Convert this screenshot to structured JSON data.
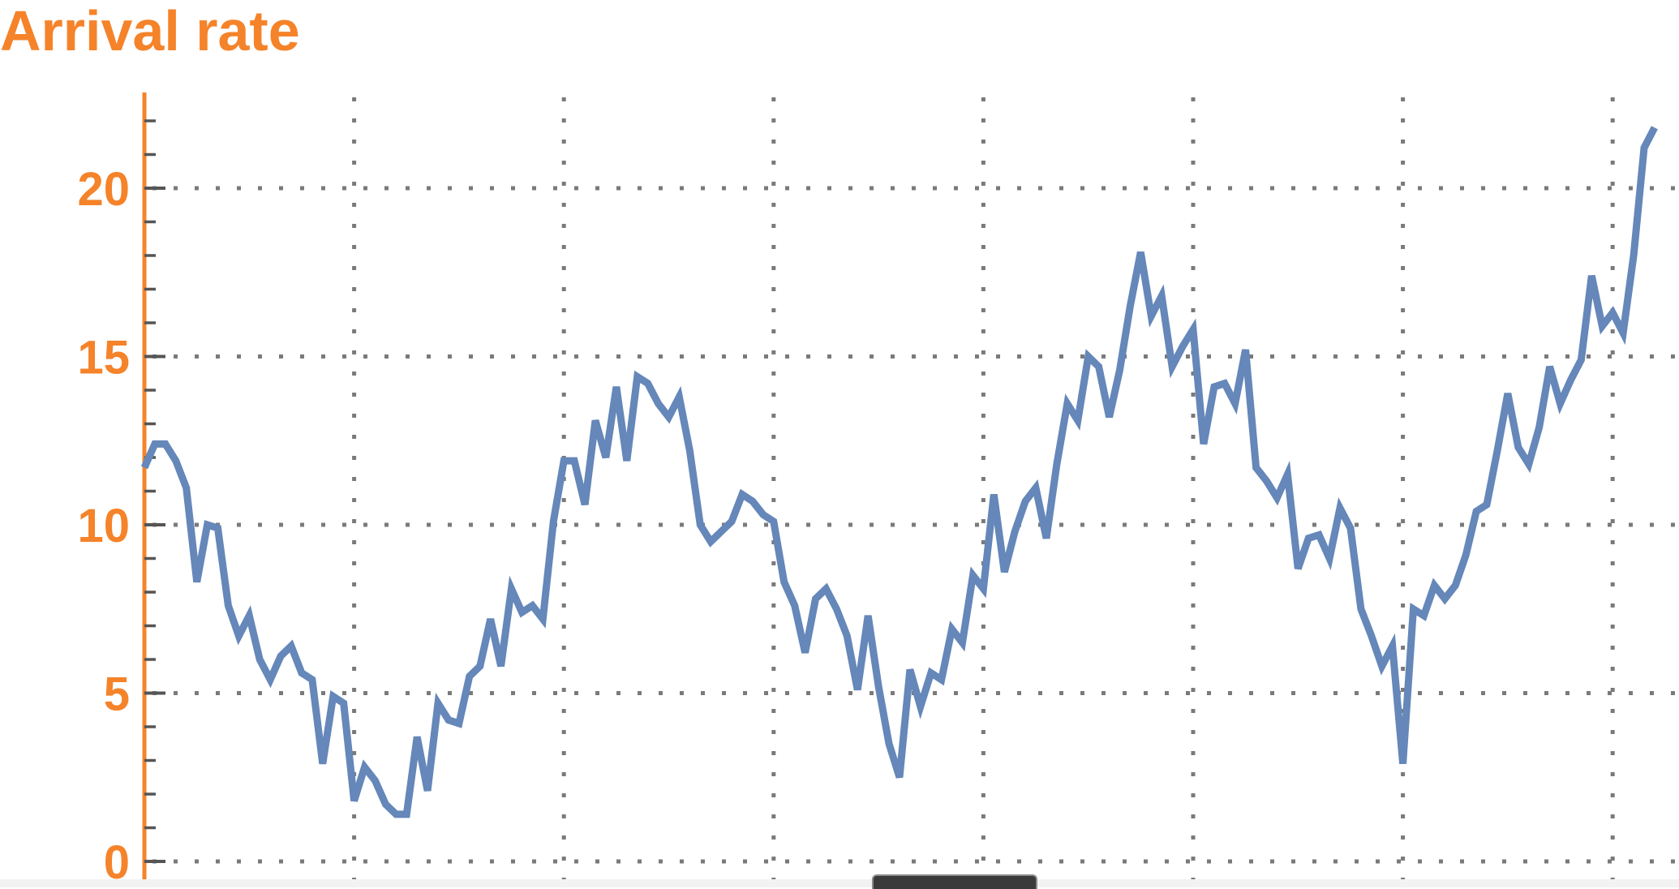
{
  "colors": {
    "accent": "#F5832A",
    "series": "#6587B9",
    "grid": "#7a7a7a",
    "tick": "#555555"
  },
  "chart_data": {
    "type": "line",
    "title": "Arrival rate",
    "xlabel": "",
    "ylabel": "",
    "ylim": [
      0,
      22.5
    ],
    "xlim": [
      0,
      146
    ],
    "grid": true,
    "grid_style": "dotted",
    "y_ticks": [
      0,
      5,
      10,
      15,
      20
    ],
    "y_tick_labels": [
      "0",
      "5",
      "10",
      "15",
      "20"
    ],
    "y_minor_step": 1,
    "x_grid": [
      20,
      40,
      60,
      80,
      100,
      120,
      140
    ],
    "series": [
      {
        "values": [
          11.7,
          12.4,
          12.4,
          11.9,
          11.1,
          8.3,
          10.0,
          9.9,
          7.6,
          6.7,
          7.3,
          6.0,
          5.4,
          6.1,
          6.4,
          5.6,
          5.4,
          2.9,
          4.9,
          4.7,
          1.8,
          2.8,
          2.4,
          1.7,
          1.4,
          1.4,
          3.7,
          2.1,
          4.7,
          4.2,
          4.1,
          5.5,
          5.8,
          7.2,
          5.8,
          8.1,
          7.4,
          7.6,
          7.2,
          10.1,
          11.9,
          11.9,
          10.6,
          13.1,
          12.0,
          14.1,
          11.9,
          14.4,
          14.2,
          13.6,
          13.2,
          13.8,
          12.2,
          10.0,
          9.5,
          9.8,
          10.1,
          10.9,
          10.7,
          10.3,
          10.1,
          8.3,
          7.6,
          6.2,
          7.8,
          8.1,
          7.5,
          6.7,
          5.1,
          7.3,
          5.2,
          3.5,
          2.5,
          5.7,
          4.6,
          5.6,
          5.4,
          6.9,
          6.5,
          8.5,
          8.1,
          10.9,
          8.6,
          9.8,
          10.7,
          11.1,
          9.6,
          11.8,
          13.6,
          13.1,
          15.0,
          14.7,
          13.2,
          14.6,
          16.5,
          18.1,
          16.2,
          16.8,
          14.7,
          15.3,
          15.8,
          12.4,
          14.1,
          14.2,
          13.6,
          15.2,
          11.7,
          11.3,
          10.8,
          11.5,
          8.7,
          9.6,
          9.7,
          9.0,
          10.5,
          9.9,
          7.5,
          6.7,
          5.8,
          6.4,
          2.9,
          7.5,
          7.3,
          8.2,
          7.8,
          8.2,
          9.1,
          10.4,
          10.6,
          12.2,
          13.9,
          12.3,
          11.8,
          12.9,
          14.7,
          13.6,
          14.3,
          14.9,
          17.4,
          15.9,
          16.3,
          15.7,
          18.0,
          21.2,
          21.8
        ]
      }
    ]
  }
}
